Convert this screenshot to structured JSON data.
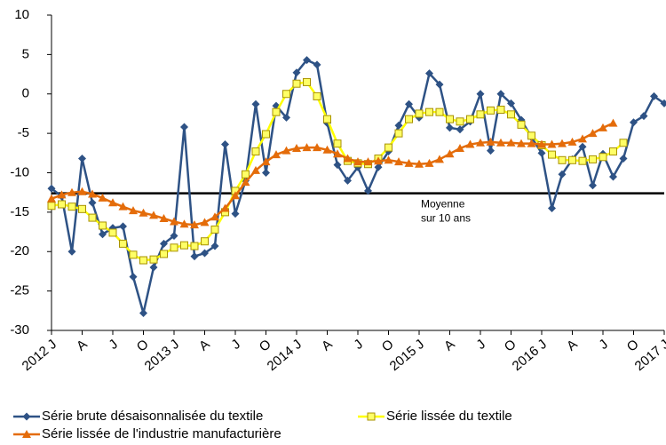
{
  "chart_data": {
    "type": "line",
    "categories": [
      "2012 J",
      null,
      null,
      "A",
      null,
      null,
      "J",
      null,
      null,
      "O",
      null,
      null,
      "2013 J",
      null,
      null,
      "A",
      null,
      null,
      "J",
      null,
      null,
      "O",
      null,
      null,
      "2014 J",
      null,
      null,
      "A",
      null,
      null,
      "J",
      null,
      null,
      "O",
      null,
      null,
      "2015 J",
      null,
      null,
      "A",
      null,
      null,
      "J",
      null,
      null,
      "O",
      null,
      null,
      "2016 J",
      null,
      null,
      "A",
      null,
      null,
      "J",
      null,
      null,
      "O",
      null,
      null,
      "2017 J"
    ],
    "series": [
      {
        "name": "Série brute désaisonnalisée du textile",
        "color": "#2e5285",
        "marker": "diamond",
        "values": [
          -12,
          -13,
          -20,
          -8.2,
          -13.8,
          -17.8,
          -17,
          -16.8,
          -23.2,
          -27.8,
          -22,
          -19,
          -18,
          -4.2,
          -20.6,
          -20.2,
          -19.3,
          -6.4,
          -15.2,
          -11,
          -1.3,
          -10,
          -1.5,
          -3,
          2.7,
          4.3,
          3.7,
          -3.7,
          -9,
          -11,
          -9.3,
          -12.3,
          -9.3,
          -7.3,
          -4,
          -1.3,
          -3,
          2.6,
          1.2,
          -4.3,
          -4.5,
          -3.5,
          0,
          -7.2,
          0,
          -1.2,
          -3.3,
          -5.5,
          -7.5,
          -14.5,
          -10.2,
          -8.3,
          -6.7,
          -11.6,
          -7.6,
          -10.5,
          -8.2,
          -3.6,
          -2.8,
          -0.3,
          -1.2
        ]
      },
      {
        "name": "Série lissée du textile",
        "color": "#ffff00",
        "marker": "square",
        "values": [
          -14.2,
          -14,
          -14.3,
          -14.6,
          -15.7,
          -16.7,
          -17.6,
          -19,
          -20.4,
          -21.1,
          -21,
          -20.3,
          -19.5,
          -19.2,
          -19.3,
          -18.7,
          -17.2,
          -15,
          -12.3,
          -10.2,
          -7.3,
          -5.1,
          -2.3,
          0,
          1.3,
          1.5,
          -0.3,
          -3.2,
          -6.3,
          -8.5,
          -8.8,
          -8.9,
          -8.2,
          -6.8,
          -5,
          -3.2,
          -2.5,
          -2.3,
          -2.3,
          -3.2,
          -3.5,
          -3.2,
          -2.6,
          -2.1,
          -2,
          -2.6,
          -3.9,
          -5.3,
          -6.5,
          -7.7,
          -8.4,
          -8.4,
          -8.5,
          -8.3,
          -8,
          -7.3,
          -6.2,
          null,
          null,
          null,
          null
        ]
      },
      {
        "name": "Série lissée de l'industrie manufacturière",
        "color": "#e46c0a",
        "marker": "triangle",
        "values": [
          -13.3,
          -12.8,
          -12.5,
          -12.4,
          -12.7,
          -13.2,
          -13.8,
          -14.3,
          -14.8,
          -15.1,
          -15.4,
          -15.8,
          -16.2,
          -16.5,
          -16.6,
          -16.3,
          -15.6,
          -14.5,
          -12.9,
          -11.2,
          -9.7,
          -8.6,
          -7.7,
          -7.2,
          -6.9,
          -6.8,
          -6.8,
          -7.1,
          -7.6,
          -8.2,
          -8.6,
          -8.6,
          -8.5,
          -8.4,
          -8.6,
          -8.8,
          -8.9,
          -8.8,
          -8.3,
          -7.6,
          -6.9,
          -6.4,
          -6.2,
          -6.1,
          -6.2,
          -6.2,
          -6.3,
          -6.3,
          -6.4,
          -6.4,
          -6.3,
          -6.1,
          -5.7,
          -5,
          -4.3,
          -3.7,
          null,
          null,
          null,
          null,
          null
        ]
      }
    ],
    "reference_line": {
      "value": -12.6,
      "label": [
        "Moyenne",
        "sur 10 ans"
      ]
    },
    "ylim": [
      -30,
      10
    ],
    "yticks": [
      -30,
      -25,
      -20,
      -15,
      -10,
      -5,
      0,
      5,
      10
    ],
    "grid": false,
    "legend": "bottom"
  }
}
